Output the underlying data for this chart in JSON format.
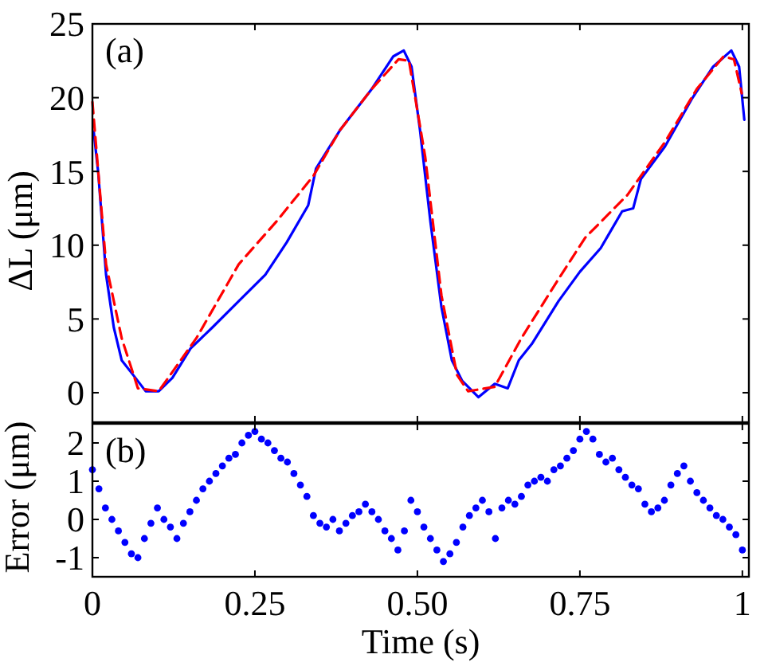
{
  "chart_data": [
    {
      "type": "line",
      "ylabel": "ΔL (μm)",
      "annotations": [
        "(a)"
      ],
      "xlim": [
        0,
        1.01
      ],
      "xticks": [
        0,
        0.25,
        0.5,
        0.75,
        1
      ],
      "ylim": [
        -2,
        25
      ],
      "yticks": [
        0,
        5,
        10,
        15,
        20,
        25
      ],
      "tick_labels": "y",
      "series": [
        {
          "color": "#0000ff",
          "line_style": "solid",
          "x": [
            0.002,
            0.009,
            0.021,
            0.033,
            0.045,
            0.061,
            0.082,
            0.102,
            0.123,
            0.151,
            0.184,
            0.225,
            0.266,
            0.299,
            0.332,
            0.344,
            0.381,
            0.43,
            0.463,
            0.479,
            0.491,
            0.504,
            0.52,
            0.537,
            0.553,
            0.569,
            0.594,
            0.619,
            0.639,
            0.656,
            0.676,
            0.717,
            0.75,
            0.782,
            0.815,
            0.832,
            0.844,
            0.881,
            0.922,
            0.955,
            0.983,
            0.995,
            1.003
          ],
          "values": [
            17.7,
            14.9,
            8,
            4.4,
            2.2,
            1.3,
            0.1,
            0.1,
            1,
            3,
            4.4,
            6.2,
            8,
            10.2,
            12.7,
            15.2,
            17.8,
            20.6,
            22.8,
            23.2,
            22.1,
            17.8,
            11.6,
            5.8,
            2.2,
            0.8,
            -0.3,
            0.6,
            0.3,
            2.2,
            3.3,
            6.2,
            8.2,
            9.8,
            12.3,
            12.5,
            14.5,
            16.7,
            19.9,
            22.1,
            23.2,
            22.1,
            18.5
          ]
        },
        {
          "color": "#ff0000",
          "line_style": "dashed",
          "x": [
            0,
            0.021,
            0.045,
            0.07,
            0.102,
            0.16,
            0.225,
            0.283,
            0.34,
            0.381,
            0.43,
            0.471,
            0.487,
            0.512,
            0.537,
            0.561,
            0.578,
            0.619,
            0.66,
            0.717,
            0.758,
            0.823,
            0.881,
            0.93,
            0.971,
            0.987,
            0.999
          ],
          "values": [
            19.7,
            8.7,
            3.7,
            0.3,
            0.1,
            3.7,
            8.7,
            11.6,
            14.7,
            17.8,
            20.6,
            22.6,
            22.5,
            16,
            6.6,
            1.2,
            0.1,
            0.4,
            3.7,
            7.7,
            10.5,
            13.4,
            17,
            20.6,
            22.8,
            22.6,
            20.3
          ]
        }
      ]
    },
    {
      "type": "scatter",
      "xlabel": "Time (s)",
      "ylabel": "Error (μm)",
      "annotations": [
        "(b)"
      ],
      "xlim": [
        0,
        1.01
      ],
      "xticks": [
        0,
        0.25,
        {
          "value": 0.5,
          "label": "0.50"
        },
        0.75,
        1
      ],
      "ylim": [
        -1.5,
        2.5
      ],
      "yticks": [
        -1,
        0,
        1,
        2
      ],
      "marker": "circle",
      "series": [
        {
          "color": "#0000ff",
          "x": [
            0,
            0.01,
            0.02,
            0.03,
            0.04,
            0.05,
            0.06,
            0.07,
            0.08,
            0.09,
            0.1,
            0.11,
            0.12,
            0.13,
            0.14,
            0.15,
            0.16,
            0.17,
            0.18,
            0.19,
            0.2,
            0.21,
            0.22,
            0.23,
            0.24,
            0.25,
            0.26,
            0.27,
            0.28,
            0.29,
            0.3,
            0.31,
            0.32,
            0.33,
            0.34,
            0.35,
            0.36,
            0.37,
            0.38,
            0.39,
            0.4,
            0.41,
            0.42,
            0.43,
            0.44,
            0.45,
            0.46,
            0.47,
            0.48,
            0.49,
            0.5,
            0.51,
            0.52,
            0.53,
            0.54,
            0.55,
            0.56,
            0.57,
            0.58,
            0.59,
            0.6,
            0.61,
            0.62,
            0.63,
            0.64,
            0.65,
            0.66,
            0.67,
            0.68,
            0.69,
            0.7,
            0.71,
            0.72,
            0.73,
            0.74,
            0.75,
            0.76,
            0.77,
            0.78,
            0.79,
            0.8,
            0.81,
            0.82,
            0.83,
            0.84,
            0.85,
            0.86,
            0.87,
            0.88,
            0.89,
            0.9,
            0.91,
            0.92,
            0.93,
            0.94,
            0.95,
            0.96,
            0.97,
            0.98,
            0.99,
            1
          ],
          "values": [
            1.3,
            0.8,
            0.3,
            0,
            -0.3,
            -0.6,
            -0.9,
            -1,
            -0.5,
            -0.1,
            0.3,
            0,
            -0.2,
            -0.5,
            -0.1,
            0.2,
            0.5,
            0.8,
            1,
            1.2,
            1.4,
            1.6,
            1.7,
            2,
            2.2,
            2.3,
            2.1,
            2,
            1.8,
            1.6,
            1.5,
            1.2,
            0.9,
            0.6,
            0.1,
            -0.1,
            -0.2,
            0,
            -0.3,
            -0.1,
            0.1,
            0.2,
            0.4,
            0.2,
            0,
            -0.3,
            -0.5,
            -0.8,
            -0.3,
            0.5,
            0.2,
            -0.2,
            -0.5,
            -0.8,
            -1.1,
            -0.9,
            -0.6,
            -0.2,
            0.1,
            0.3,
            0.5,
            0.2,
            -0.5,
            0.3,
            0.5,
            0.4,
            0.6,
            0.9,
            1,
            1.1,
            1,
            1.3,
            1.4,
            1.6,
            1.8,
            2.1,
            2.3,
            2.1,
            1.7,
            1.5,
            1.6,
            1.3,
            1.1,
            0.9,
            0.8,
            0.4,
            0.2,
            0.3,
            0.5,
            0.9,
            1.2,
            1.4,
            1,
            0.7,
            0.5,
            0.3,
            0.1,
            0,
            -0.2,
            -0.4,
            -0.8
          ]
        }
      ]
    }
  ]
}
